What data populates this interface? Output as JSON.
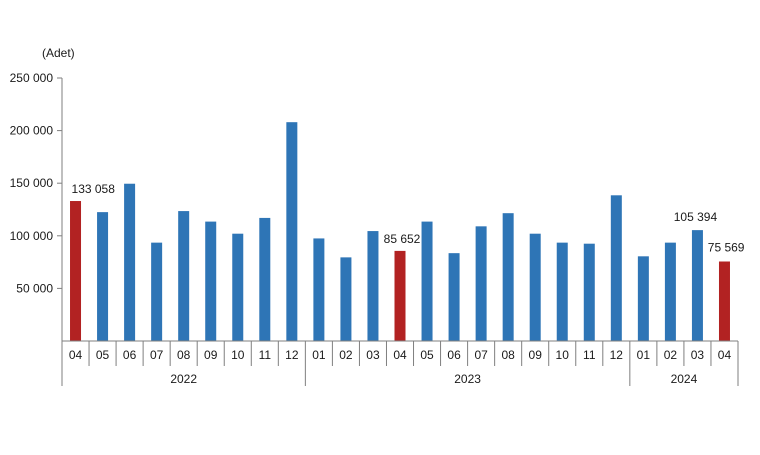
{
  "chart_data": {
    "type": "bar",
    "ylabel": "(Adet)",
    "ylim": [
      0,
      250000
    ],
    "yticks": [
      {
        "value": 50000,
        "label": "50 000"
      },
      {
        "value": 100000,
        "label": "100 000"
      },
      {
        "value": 150000,
        "label": "150 000"
      },
      {
        "value": 200000,
        "label": "200 000"
      },
      {
        "value": 250000,
        "label": "250 000"
      }
    ],
    "grid": false,
    "legend": "none",
    "colors": {
      "default": "#2e75b6",
      "highlight": "#b22222"
    },
    "categories": [
      "04",
      "05",
      "06",
      "07",
      "08",
      "09",
      "10",
      "11",
      "12",
      "01",
      "02",
      "03",
      "04",
      "05",
      "06",
      "07",
      "08",
      "09",
      "10",
      "11",
      "12",
      "01",
      "02",
      "03",
      "04"
    ],
    "years": [
      {
        "label": "2022",
        "count": 9
      },
      {
        "label": "2023",
        "count": 12
      },
      {
        "label": "2024",
        "count": 4
      }
    ],
    "values": [
      133058,
      122500,
      149500,
      93500,
      123500,
      113500,
      102000,
      117000,
      208000,
      97500,
      79500,
      104500,
      85652,
      113500,
      83500,
      109000,
      121500,
      102000,
      93500,
      92500,
      138500,
      80500,
      93500,
      105394,
      75569
    ],
    "highlighted": [
      0,
      12,
      24
    ],
    "data_labels": [
      {
        "index": 0,
        "text": "133 058"
      },
      {
        "index": 12,
        "text": "85 652"
      },
      {
        "index": 23,
        "text": "105 394"
      },
      {
        "index": 24,
        "text": "75 569"
      }
    ]
  }
}
